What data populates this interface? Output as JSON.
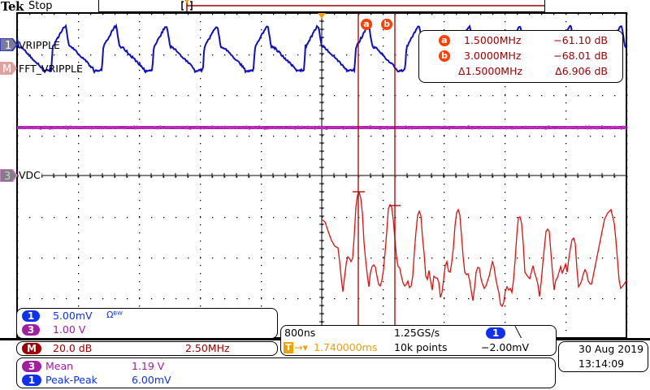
{
  "header": {
    "brand": "Tek",
    "run_state": "Stop"
  },
  "channels": [
    {
      "id": "1",
      "label": "VRIPPLE",
      "color": "#1010c0"
    },
    {
      "id": "M",
      "label": "FFT_VRIPPLE",
      "color": "#c0302f"
    },
    {
      "id": "3",
      "label": "VDC",
      "color": "#a020a0"
    }
  ],
  "cursors": {
    "a": {
      "marker": "a",
      "freq": "1.5000MHz",
      "level": "−61.10 dB"
    },
    "b": {
      "marker": "b",
      "freq": "3.0000MHz",
      "level": "−68.01 dB"
    },
    "delta": {
      "freq": "Δ1.5000MHz",
      "level": "Δ6.906 dB"
    }
  },
  "vertical": {
    "ch1": {
      "badge": "1",
      "scale": "5.00mV",
      "bw_icon": "Ωᴮᵂ"
    },
    "ch3": {
      "badge": "3",
      "scale": "1.00 V"
    },
    "math": {
      "badge": "M",
      "scale": "20.0 dB",
      "center": "2.50MHz"
    }
  },
  "measurements": [
    {
      "badge": "3",
      "name": "Mean",
      "value": "1.19 V"
    },
    {
      "badge": "1",
      "name": "Peak-Peak",
      "value": "6.00mV"
    }
  ],
  "horizontal": {
    "time_div": "800ns",
    "sample_rate": "1.25GS/s",
    "trigger_source": "1",
    "trigger_slope": "╲",
    "trigger_position": "1.740000ms",
    "trigger_prefix": "T",
    "record_length": "10k points",
    "trigger_level": "−2.00mV"
  },
  "datetime": {
    "date": "30 Aug 2019",
    "time": "13:14:09"
  },
  "colors": {
    "ch1": "#1010c0",
    "ch3": "#a020a0",
    "math": "#e01010",
    "math_dark": "#a00000",
    "cursor": "#a00000",
    "cursor_badge": "#ff4000",
    "trigger": "#f0a000"
  }
}
